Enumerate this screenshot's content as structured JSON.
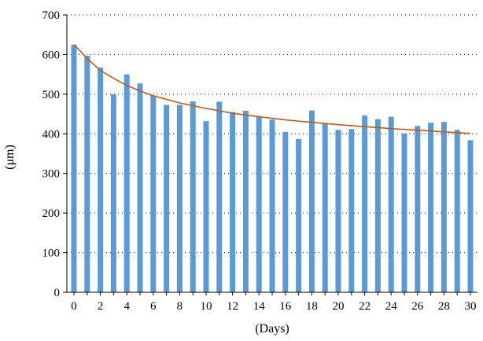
{
  "chart_data": {
    "type": "bar",
    "xlabel": "(Days)",
    "ylabel": "(μm)",
    "ylim": [
      0,
      700
    ],
    "xlim": [
      0,
      30
    ],
    "yticks": [
      0,
      100,
      200,
      300,
      400,
      500,
      600,
      700
    ],
    "xticks": [
      0,
      2,
      4,
      6,
      8,
      10,
      12,
      14,
      16,
      18,
      20,
      22,
      24,
      26,
      28,
      30
    ],
    "grid": "horizontal dotted",
    "x": [
      0,
      1,
      2,
      3,
      4,
      5,
      6,
      7,
      8,
      9,
      10,
      11,
      12,
      13,
      14,
      15,
      16,
      17,
      18,
      19,
      20,
      21,
      22,
      23,
      24,
      25,
      26,
      27,
      28,
      29,
      30
    ],
    "values": [
      625,
      597,
      567,
      500,
      550,
      527,
      497,
      473,
      473,
      482,
      432,
      481,
      455,
      458,
      445,
      436,
      405,
      387,
      459,
      425,
      410,
      412,
      446,
      437,
      443,
      401,
      420,
      428,
      430,
      410,
      384
    ],
    "bar_color": "#5b9bd5",
    "trendline": {
      "color": "#c55a11",
      "x": [
        0,
        0.5,
        1,
        2,
        3,
        4,
        5,
        6,
        8,
        10,
        12,
        14,
        16,
        18,
        20,
        22,
        24,
        26,
        28,
        30
      ],
      "y": [
        625,
        608,
        590,
        560,
        540,
        522,
        508,
        496,
        478,
        464,
        452,
        443,
        435,
        429,
        423,
        418,
        413,
        409,
        405,
        401
      ]
    }
  }
}
